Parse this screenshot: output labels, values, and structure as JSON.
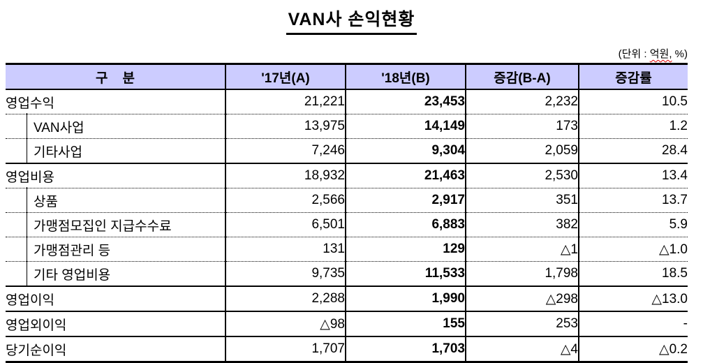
{
  "title": "VAN사 손익현황",
  "unit_note": {
    "prefix": "(단위 : ",
    "highlight": "억원,",
    "suffix": " %)"
  },
  "colors": {
    "header_bg": "#ccccff",
    "border": "#000000",
    "spellcheck_underline": "#dd0000"
  },
  "table": {
    "headers": [
      "구    분",
      "'17년(A)",
      "'18년(B)",
      "증감(B-A)",
      "증감률"
    ],
    "rows": [
      {
        "label": "영업수익",
        "sub": false,
        "a": "21,221",
        "b": "23,453",
        "diff": "2,232",
        "rate": "10.5"
      },
      {
        "label": "VAN사업",
        "sub": true,
        "a": "13,975",
        "b": "14,149",
        "diff": "173",
        "rate": "1.2"
      },
      {
        "label": "기타사업",
        "sub": true,
        "a": "7,246",
        "b": "9,304",
        "diff": "2,059",
        "rate": "28.4"
      },
      {
        "label": "영업비용",
        "sub": false,
        "a": "18,932",
        "b": "21,463",
        "diff": "2,530",
        "rate": "13.4"
      },
      {
        "label": "상품",
        "sub": true,
        "a": "2,566",
        "b": "2,917",
        "diff": "351",
        "rate": "13.7"
      },
      {
        "label": "가맹점모집인 지급수수료",
        "sub": true,
        "a": "6,501",
        "b": "6,883",
        "diff": "382",
        "rate": "5.9"
      },
      {
        "label": "가맹점관리 등",
        "sub": true,
        "a": "131",
        "b": "129",
        "diff": "△1",
        "rate": "△1.0"
      },
      {
        "label": "기타 영업비용",
        "sub": true,
        "a": "9,735",
        "b": "11,533",
        "diff": "1,798",
        "rate": "18.5"
      },
      {
        "label": "영업이익",
        "sub": false,
        "a": "2,288",
        "b": "1,990",
        "diff": "△298",
        "rate": "△13.0"
      },
      {
        "label": "영업외이익",
        "sub": false,
        "a": "△98",
        "b": "155",
        "diff": "253",
        "rate": "-"
      },
      {
        "label": "당기순이익",
        "sub": false,
        "a": "1,707",
        "b": "1,703",
        "diff": "△4",
        "rate": "△0.2"
      }
    ]
  }
}
